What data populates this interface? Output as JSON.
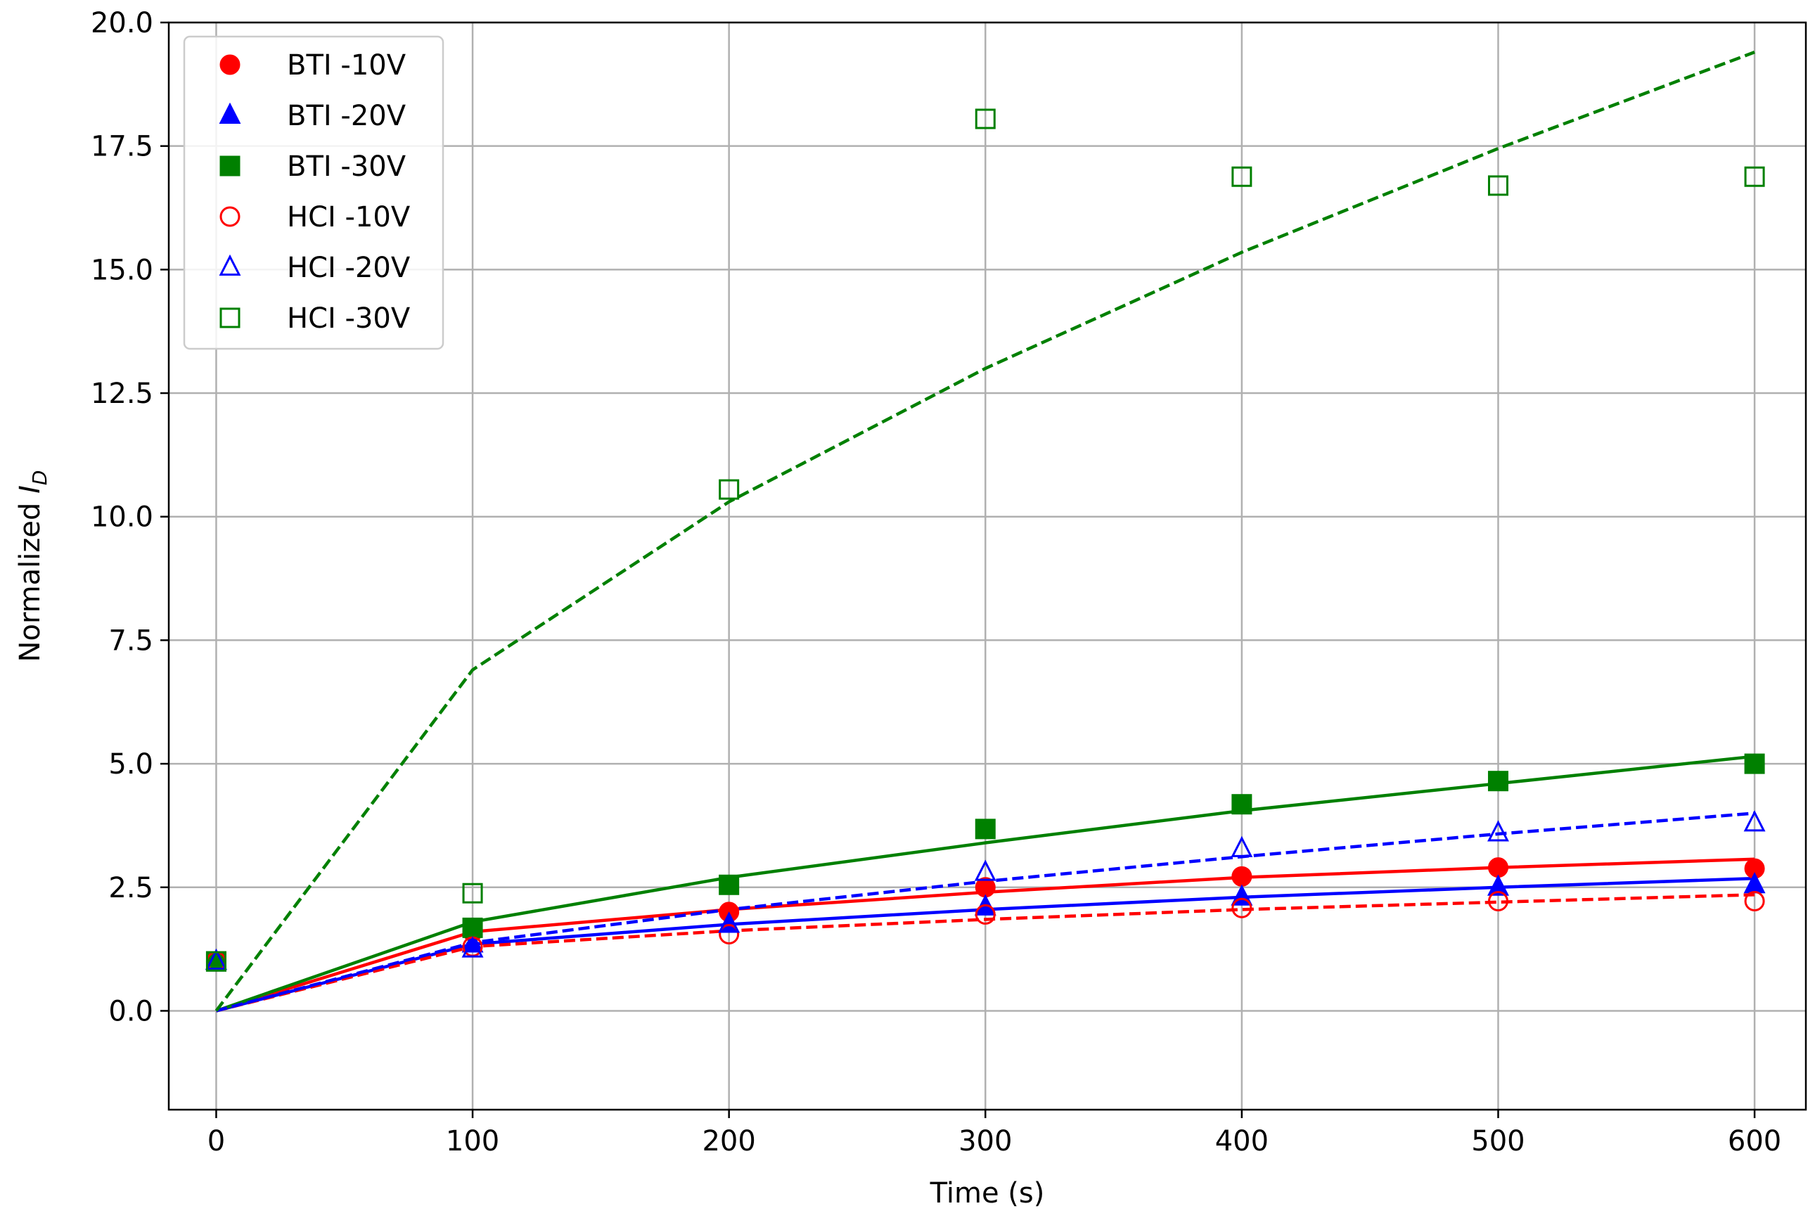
{
  "chart_data": {
    "type": "line",
    "title": "",
    "xlabel": "Time (s)",
    "ylabel_main": "Normalized ",
    "ylabel_var": "I",
    "ylabel_sub": "D",
    "xlim": [
      -18.5,
      620
    ],
    "ylim": [
      -2.0,
      20.0
    ],
    "xticks": [
      0,
      100,
      200,
      300,
      400,
      500,
      600
    ],
    "yticks": [
      0.0,
      2.5,
      5.0,
      7.5,
      10.0,
      12.5,
      15.0,
      17.5,
      20.0
    ],
    "xtick_labels": [
      "0",
      "100",
      "200",
      "300",
      "400",
      "500",
      "600"
    ],
    "ytick_labels": [
      "0.0",
      "2.5",
      "5.0",
      "7.5",
      "10.0",
      "12.5",
      "15.0",
      "17.5",
      "20.0"
    ],
    "grid": true,
    "legend_position": "upper-left",
    "series": [
      {
        "name": "BTI -10V",
        "color": "#ff0000",
        "marker": "circle",
        "filled": true,
        "line": "solid",
        "x": [
          0,
          100,
          200,
          300,
          400,
          500,
          600
        ],
        "y": [
          1.0,
          1.6,
          2.0,
          2.5,
          2.72,
          2.9,
          2.88
        ],
        "fit": [
          0,
          1.6,
          2.05,
          2.4,
          2.7,
          2.9,
          3.07
        ]
      },
      {
        "name": "BTI -20V",
        "color": "#0000ff",
        "marker": "triangle",
        "filled": true,
        "line": "solid",
        "x": [
          0,
          100,
          200,
          300,
          400,
          500,
          600
        ],
        "y": [
          1.0,
          1.35,
          1.75,
          2.1,
          2.3,
          2.5,
          2.55
        ],
        "fit": [
          0,
          1.35,
          1.75,
          2.05,
          2.3,
          2.5,
          2.68
        ]
      },
      {
        "name": "BTI -30V",
        "color": "#008000",
        "marker": "square",
        "filled": true,
        "line": "solid",
        "x": [
          0,
          100,
          200,
          300,
          400,
          500,
          600
        ],
        "y": [
          1.0,
          1.68,
          2.55,
          3.68,
          4.18,
          4.65,
          5.0
        ],
        "fit": [
          0,
          1.8,
          2.7,
          3.4,
          4.05,
          4.6,
          5.15
        ]
      },
      {
        "name": "HCI -10V",
        "color": "#ff0000",
        "marker": "circle",
        "filled": false,
        "line": "dashed",
        "x": [
          0,
          100,
          200,
          300,
          400,
          500,
          600
        ],
        "y": [
          1.0,
          1.3,
          1.55,
          1.95,
          2.08,
          2.22,
          2.22
        ],
        "fit": [
          0,
          1.3,
          1.62,
          1.85,
          2.05,
          2.2,
          2.35
        ]
      },
      {
        "name": "HCI -20V",
        "color": "#0000ff",
        "marker": "triangle",
        "filled": false,
        "line": "dashed",
        "x": [
          0,
          100,
          200,
          300,
          400,
          500,
          600
        ],
        "y": [
          1.0,
          1.25,
          1.75,
          2.8,
          3.28,
          3.6,
          3.8
        ],
        "fit": [
          0,
          1.38,
          2.05,
          2.62,
          3.12,
          3.58,
          4.0
        ]
      },
      {
        "name": "HCI -30V",
        "color": "#008000",
        "marker": "square",
        "filled": false,
        "line": "dashed",
        "x": [
          0,
          100,
          200,
          300,
          400,
          500,
          600
        ],
        "y": [
          1.0,
          2.38,
          10.55,
          18.05,
          16.88,
          16.7,
          16.88
        ],
        "fit": [
          0,
          6.9,
          10.3,
          13.0,
          15.35,
          17.45,
          19.4
        ]
      }
    ]
  }
}
